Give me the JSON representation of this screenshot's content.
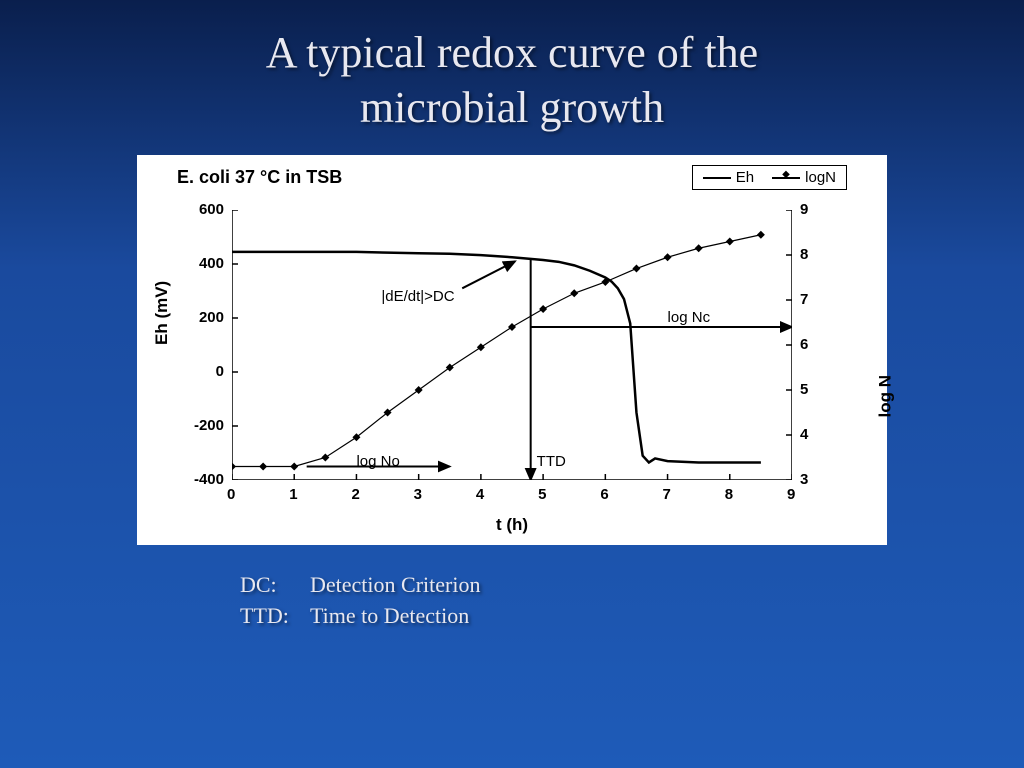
{
  "slide": {
    "title_line1": "A typical redox curve of the",
    "title_line2": "microbial growth",
    "background_gradient": [
      "#0a1f4d",
      "#1a4a9e",
      "#1e5bb8"
    ]
  },
  "chart": {
    "type": "dual-axis-line",
    "subtitle": "E. coli 37 °C in TSB",
    "background_color": "#ffffff",
    "line_color": "#000000",
    "x_axis": {
      "label": "t (h)",
      "min": 0,
      "max": 9,
      "tick_step": 1
    },
    "y_left": {
      "label": "Eh (mV)",
      "min": -400,
      "max": 600,
      "tick_step": 200
    },
    "y_right": {
      "label": "log N",
      "min": 3,
      "max": 9,
      "tick_step": 1
    },
    "legend": {
      "items": [
        {
          "label": "Eh",
          "marker": false
        },
        {
          "label": "logN",
          "marker": true
        }
      ]
    },
    "series_eh": {
      "name": "Eh",
      "x": [
        0,
        0.5,
        1,
        1.5,
        2,
        2.5,
        3,
        3.5,
        4,
        4.5,
        5,
        5.25,
        5.5,
        5.75,
        6,
        6.1,
        6.2,
        6.3,
        6.4,
        6.5,
        6.6,
        6.7,
        6.8,
        7,
        7.5,
        8,
        8.5
      ],
      "y": [
        445,
        445,
        445,
        445,
        445,
        442,
        440,
        438,
        433,
        425,
        415,
        408,
        395,
        375,
        350,
        335,
        310,
        270,
        180,
        -150,
        -310,
        -335,
        -320,
        -330,
        -335,
        -335,
        -335
      ],
      "line_width": 2.5
    },
    "series_logn": {
      "name": "logN",
      "x": [
        0,
        0.5,
        1,
        1.5,
        2,
        2.5,
        3,
        3.5,
        4,
        4.5,
        5,
        5.5,
        6,
        6.5,
        7,
        7.5,
        8,
        8.5
      ],
      "y": [
        3.3,
        3.3,
        3.3,
        3.5,
        3.95,
        4.5,
        5.0,
        5.5,
        5.95,
        6.4,
        6.8,
        7.15,
        7.4,
        7.7,
        7.95,
        8.15,
        8.3,
        8.45
      ],
      "line_width": 1.2,
      "marker": "diamond"
    },
    "annotations": {
      "dedt": "|dE/dt|>DC",
      "ttd": "TTD",
      "logNo": "log No",
      "logNc": "log Nc",
      "ttd_x": 4.8,
      "logNo_y": 3.3,
      "logNc_y": 6.4
    }
  },
  "footer": [
    {
      "key": "DC:",
      "value": "Detection Criterion"
    },
    {
      "key": "TTD:",
      "value": "Time to Detection"
    }
  ]
}
